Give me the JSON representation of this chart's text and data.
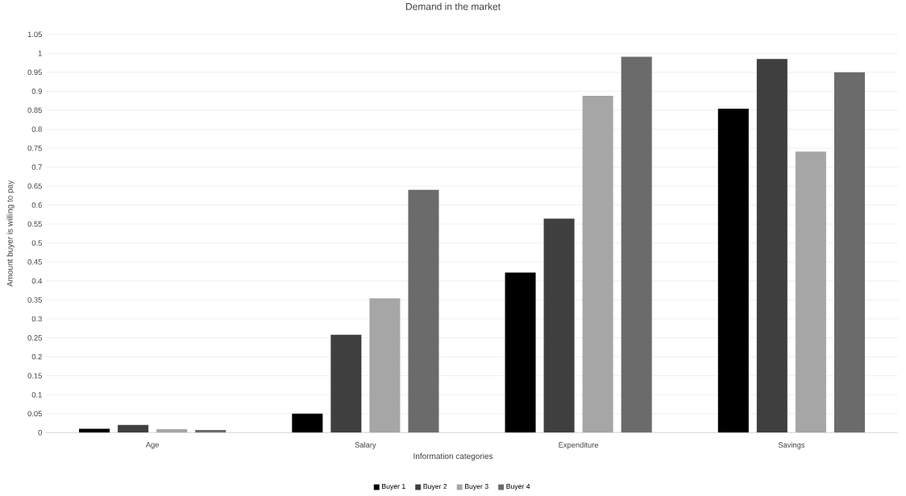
{
  "chart_data": {
    "type": "bar",
    "title": "Demand in the market",
    "xlabel": "Information categories",
    "ylabel": "Amount buyer is willing to pay",
    "categories": [
      "Age",
      "Salary",
      "Expenditure",
      "Savings"
    ],
    "series": [
      {
        "name": "Buyer 1",
        "color": "#000000",
        "values": [
          0.01,
          0.05,
          0.422,
          0.854
        ]
      },
      {
        "name": "Buyer 2",
        "color": "#3f3f3f",
        "values": [
          0.02,
          0.258,
          0.564,
          0.985
        ]
      },
      {
        "name": "Buyer 3",
        "color": "#a6a6a6",
        "values": [
          0.009,
          0.354,
          0.888,
          0.741
        ]
      },
      {
        "name": "Buyer 4",
        "color": "#6b6b6b",
        "values": [
          0.007,
          0.64,
          0.991,
          0.95
        ]
      }
    ],
    "ylim": [
      0,
      1.05
    ],
    "yticks": [
      0,
      0.05,
      0.1,
      0.15,
      0.2,
      0.25,
      0.3,
      0.35,
      0.4,
      0.45,
      0.5,
      0.55,
      0.6,
      0.65,
      0.7,
      0.75,
      0.8,
      0.85,
      0.9,
      0.95,
      1,
      1.05
    ],
    "grid": "y",
    "legend": "bottom"
  }
}
